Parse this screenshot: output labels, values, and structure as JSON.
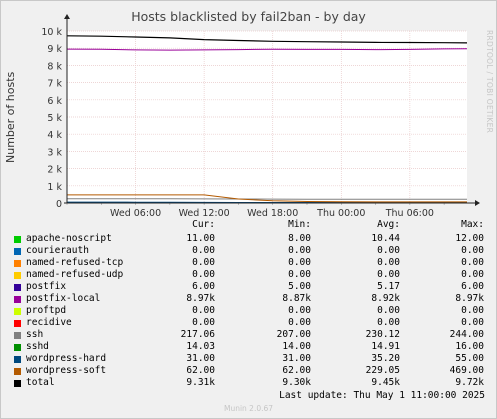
{
  "chart_data": {
    "type": "line",
    "title": "Hosts blacklisted by fail2ban - by day",
    "ylabel": "Number of hosts",
    "ylim": [
      0,
      10000
    ],
    "y_ticks": [
      "0",
      "1 k",
      "2 k",
      "3 k",
      "4 k",
      "5 k",
      "6 k",
      "7 k",
      "8 k",
      "9 k",
      "10 k"
    ],
    "x_ticks": [
      "Wed 06:00",
      "Wed 12:00",
      "Wed 18:00",
      "Thu 00:00",
      "Thu 06:00"
    ],
    "grid": true,
    "x": [
      "Wed 00:00",
      "Wed 03:00",
      "Wed 06:00",
      "Wed 09:00",
      "Wed 12:00",
      "Wed 15:00",
      "Wed 18:00",
      "Wed 21:00",
      "Thu 00:00",
      "Thu 03:00",
      "Thu 06:00",
      "Thu 09:00",
      "Thu 11:00"
    ],
    "series": [
      {
        "name": "apache-noscript",
        "color": "#00cc00",
        "values": [
          12,
          12,
          11,
          11,
          10,
          10,
          10,
          10,
          11,
          11,
          11,
          11,
          11
        ]
      },
      {
        "name": "courierauth",
        "color": "#0066b3",
        "values": [
          0,
          0,
          0,
          0,
          0,
          0,
          0,
          0,
          0,
          0,
          0,
          0,
          0
        ]
      },
      {
        "name": "named-refused-tcp",
        "color": "#ff8000",
        "values": [
          0,
          0,
          0,
          0,
          0,
          0,
          0,
          0,
          0,
          0,
          0,
          0,
          0
        ]
      },
      {
        "name": "named-refused-udp",
        "color": "#ffcc00",
        "values": [
          0,
          0,
          0,
          0,
          0,
          0,
          0,
          0,
          0,
          0,
          0,
          0,
          0
        ]
      },
      {
        "name": "postfix",
        "color": "#330099",
        "values": [
          6,
          6,
          6,
          5,
          5,
          5,
          5,
          5,
          5,
          5,
          5,
          6,
          6
        ]
      },
      {
        "name": "postfix-local",
        "color": "#990099",
        "values": [
          8950,
          8940,
          8900,
          8890,
          8900,
          8920,
          8940,
          8930,
          8930,
          8920,
          8930,
          8960,
          8970
        ]
      },
      {
        "name": "proftpd",
        "color": "#ccff00",
        "values": [
          0,
          0,
          0,
          0,
          0,
          0,
          0,
          0,
          0,
          0,
          0,
          0,
          0
        ]
      },
      {
        "name": "recidive",
        "color": "#ff0000",
        "values": [
          0,
          0,
          0,
          0,
          0,
          0,
          0,
          0,
          0,
          0,
          0,
          0,
          0
        ]
      },
      {
        "name": "ssh",
        "color": "#808080",
        "values": [
          244,
          244,
          244,
          244,
          240,
          232,
          226,
          222,
          220,
          217,
          215,
          215,
          217
        ]
      },
      {
        "name": "sshd",
        "color": "#008f00",
        "values": [
          16,
          16,
          16,
          15,
          15,
          15,
          15,
          15,
          15,
          14,
          14,
          14,
          14
        ]
      },
      {
        "name": "wordpress-hard",
        "color": "#00487d",
        "values": [
          55,
          50,
          45,
          38,
          33,
          31,
          31,
          31,
          31,
          31,
          31,
          31,
          31
        ]
      },
      {
        "name": "wordpress-soft",
        "color": "#b35a00",
        "values": [
          469,
          469,
          469,
          469,
          469,
          230,
          130,
          90,
          70,
          62,
          62,
          62,
          62
        ]
      },
      {
        "name": "total",
        "color": "#000000",
        "values": [
          9720,
          9700,
          9650,
          9600,
          9500,
          9450,
          9400,
          9380,
          9360,
          9340,
          9330,
          9320,
          9310
        ]
      }
    ]
  },
  "legend": {
    "headers": [
      "Cur:",
      "Min:",
      "Avg:",
      "Max:"
    ],
    "rows": [
      {
        "name": "apache-noscript",
        "color": "#00cc00",
        "cur": "11.00",
        "min": "8.00",
        "avg": "10.44",
        "max": "12.00"
      },
      {
        "name": "courierauth",
        "color": "#0066b3",
        "cur": "0.00",
        "min": "0.00",
        "avg": "0.00",
        "max": "0.00"
      },
      {
        "name": "named-refused-tcp",
        "color": "#ff8000",
        "cur": "0.00",
        "min": "0.00",
        "avg": "0.00",
        "max": "0.00"
      },
      {
        "name": "named-refused-udp",
        "color": "#ffcc00",
        "cur": "0.00",
        "min": "0.00",
        "avg": "0.00",
        "max": "0.00"
      },
      {
        "name": "postfix",
        "color": "#330099",
        "cur": "6.00",
        "min": "5.00",
        "avg": "5.17",
        "max": "6.00"
      },
      {
        "name": "postfix-local",
        "color": "#990099",
        "cur": "8.97k",
        "min": "8.87k",
        "avg": "8.92k",
        "max": "8.97k"
      },
      {
        "name": "proftpd",
        "color": "#ccff00",
        "cur": "0.00",
        "min": "0.00",
        "avg": "0.00",
        "max": "0.00"
      },
      {
        "name": "recidive",
        "color": "#ff0000",
        "cur": "0.00",
        "min": "0.00",
        "avg": "0.00",
        "max": "0.00"
      },
      {
        "name": "ssh",
        "color": "#808080",
        "cur": "217.06",
        "min": "207.00",
        "avg": "230.12",
        "max": "244.00"
      },
      {
        "name": "sshd",
        "color": "#008f00",
        "cur": "14.03",
        "min": "14.00",
        "avg": "14.91",
        "max": "16.00"
      },
      {
        "name": "wordpress-hard",
        "color": "#00487d",
        "cur": "31.00",
        "min": "31.00",
        "avg": "35.20",
        "max": "55.00"
      },
      {
        "name": "wordpress-soft",
        "color": "#b35a00",
        "cur": "62.00",
        "min": "62.00",
        "avg": "229.05",
        "max": "469.00"
      },
      {
        "name": "total",
        "color": "#000000",
        "cur": "9.31k",
        "min": "9.30k",
        "avg": "9.45k",
        "max": "9.72k"
      }
    ]
  },
  "last_update": "Last update: Thu May  1 11:00:00 2025",
  "side_text": "RRDTOOL / TOBI OETIKER",
  "version": "Munin 2.0.67"
}
